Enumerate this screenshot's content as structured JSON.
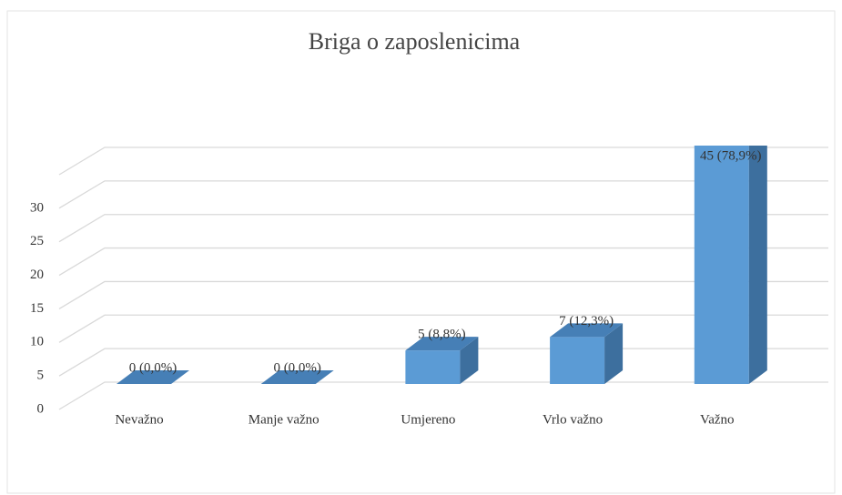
{
  "chart_data": {
    "type": "bar3d",
    "title": "Briga o zaposlenicima",
    "categories": [
      "Nevažno",
      "Manje važno",
      "Umjereno",
      "Vrlo važno",
      "Važno"
    ],
    "values": [
      0,
      0,
      5,
      7,
      45
    ],
    "value_labels": [
      "0 (0,0%)",
      "0 (0,0%)",
      "5 (8,8%)",
      "7 (12,3%)",
      "45 (78,9%)"
    ],
    "color": "#5b9bd5",
    "ylim": [
      0,
      35
    ],
    "yticks": [
      0,
      5,
      10,
      15,
      20,
      25,
      30
    ],
    "grid": true
  }
}
